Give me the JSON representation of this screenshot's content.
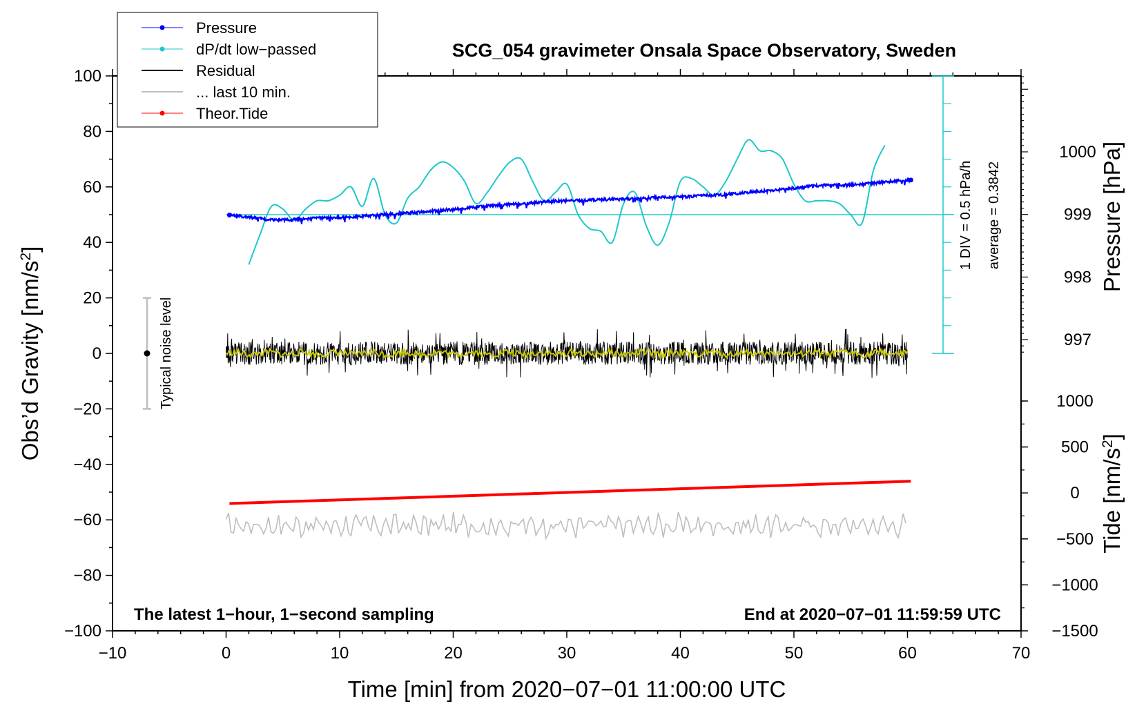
{
  "chart_data": {
    "type": "line",
    "title": "SCG_054 gravimeter Onsala Space Observatory, Sweden",
    "xlabel": "Time [min] from 2020−07−01 11:00:00 UTC",
    "ylabel_left": "Obs’d Gravity [nm/s²]",
    "ylabel_left_main": "Obs’d Gravity [nm/s",
    "ylabel_right_pressure": "Pressure [hPa]",
    "ylabel_right_tide": "Tide [nm/s²]",
    "ylabel_right_tide_main": "Tide [nm/s",
    "superscript_two": "2",
    "xlim": [
      -10,
      70
    ],
    "ylim_left": [
      -100,
      100
    ],
    "x_ticks": [
      "−10",
      "0",
      "10",
      "20",
      "30",
      "40",
      "50",
      "60",
      "70"
    ],
    "y_ticks_left": [
      "100",
      "80",
      "60",
      "40",
      "20",
      "0",
      "−20",
      "−40",
      "−60",
      "−80",
      "−100"
    ],
    "y_ticks_pressure": [
      "1000",
      "999",
      "998",
      "997"
    ],
    "y_ticks_tide": [
      "1000",
      "500",
      "0",
      "−500",
      "−1000",
      "−1500"
    ],
    "legend": [
      "Pressure",
      "dP/dt low−passed",
      "Residual",
      "... last 10 min.",
      "Theor.Tide"
    ],
    "annotations": {
      "bottom_left": "The latest 1−hour, 1−second sampling",
      "bottom_right": "End at 2020−07−01 11:59:59 UTC",
      "noise": "Typical noise level",
      "div_scale": "1 DIV = 0.5 hPa/h",
      "average": "average = 0.3842"
    },
    "colors": {
      "pressure": "#0000ff",
      "dpdt": "#1ec8c8",
      "residual": "#000000",
      "last10": "#bebebe",
      "tide": "#ff0000",
      "smooth": "#c8c800"
    },
    "series": [
      {
        "name": "Pressure",
        "y_axis": "pressure_hPa",
        "x": [
          0.3,
          2,
          4,
          6,
          8,
          10,
          12,
          14,
          16,
          18,
          20,
          22,
          24,
          26,
          28,
          30,
          32,
          34,
          36,
          38,
          40,
          42,
          44,
          46,
          48,
          50,
          52,
          54,
          56,
          58,
          60.3
        ],
        "values": [
          998.99,
          998.96,
          998.91,
          998.92,
          998.94,
          998.95,
          998.97,
          999.0,
          999.02,
          999.05,
          999.08,
          999.12,
          999.15,
          999.17,
          999.2,
          999.22,
          999.23,
          999.24,
          999.25,
          999.27,
          999.28,
          999.3,
          999.32,
          999.35,
          999.38,
          999.42,
          999.46,
          999.47,
          999.48,
          999.52,
          999.55
        ]
      },
      {
        "name": "dP/dt low−passed",
        "y_axis": "gravity_scaled",
        "x": [
          2,
          3,
          4,
          5,
          6,
          7,
          8,
          9,
          10,
          11,
          12,
          13,
          14,
          15,
          16,
          17,
          18,
          19,
          20,
          21,
          22,
          23,
          24,
          25,
          26,
          27,
          28,
          29,
          30,
          31,
          32,
          33,
          34,
          35,
          36,
          37,
          38,
          39,
          40,
          41,
          42,
          43,
          44,
          45,
          46,
          47,
          48,
          49,
          50,
          51,
          52,
          53,
          54,
          55,
          56,
          57,
          58
        ],
        "values": [
          32,
          43,
          53,
          52,
          48,
          52,
          55,
          55,
          57,
          60,
          53,
          63,
          50,
          47,
          56,
          60,
          66,
          69,
          67,
          62,
          54,
          58,
          64,
          69,
          70,
          62,
          55,
          58,
          61,
          50,
          45,
          44,
          40,
          54,
          58,
          46,
          39,
          47,
          62,
          63,
          60,
          57,
          62,
          70,
          77,
          73,
          73,
          70,
          61,
          55,
          55,
          55,
          54,
          50,
          47,
          66,
          75
        ]
      },
      {
        "name": "Theor.Tide",
        "y_axis": "tide_nm_s2",
        "x": [
          0.3,
          60.3
        ],
        "values": [
          -115,
          128
        ]
      }
    ],
    "residual_band": [
      -5,
      5
    ],
    "last10_band": [
      -62,
      3
    ],
    "dpdt_reference_line": 50,
    "noise_bar": [
      -20,
      20
    ]
  }
}
